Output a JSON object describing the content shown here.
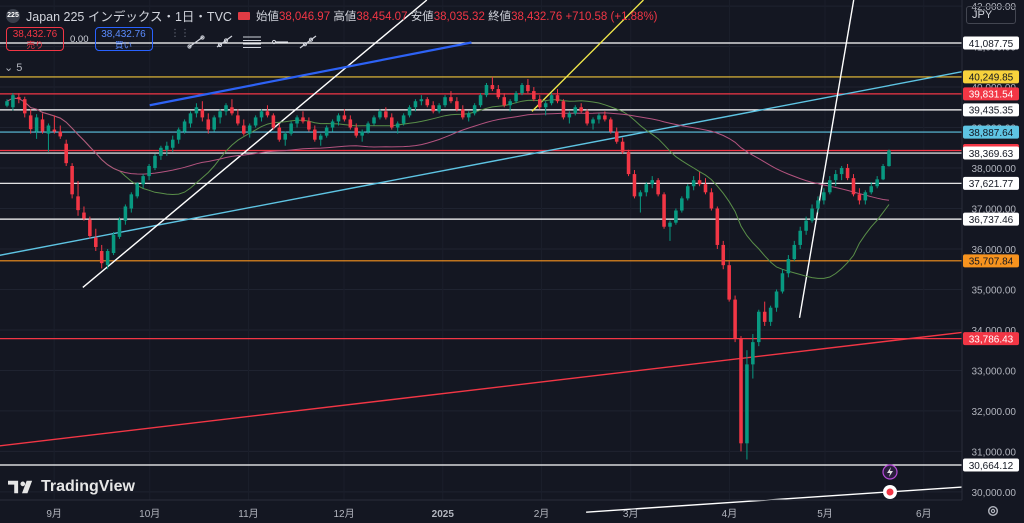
{
  "header": {
    "symbol_icon": "225",
    "title": "Japan 225 インデックス・1日・TVC",
    "ohlc": {
      "open_label": "始値",
      "open": "38,046.97",
      "high_label": "高値",
      "high": "38,454.07",
      "low_label": "安値",
      "low": "38,035.32",
      "close_label": "終値",
      "close": "38,432.76",
      "change": "+710.58 (+1.88%)"
    }
  },
  "trade": {
    "sell_price": "38,432.76",
    "sell_label": "売り",
    "spread": "0.00",
    "buy_price": "38,432.76",
    "buy_label": "買い"
  },
  "line_tool_count": "5",
  "currency": "JPY",
  "logo": "TradingView",
  "colors": {
    "background": "#141722",
    "up": "#089981",
    "down": "#f23645",
    "ma_short": "#5a8f49",
    "ma_long": "#b4537f"
  },
  "chart_data": {
    "type": "candlestick",
    "y_ticks": [
      "30,000.00",
      "31,000.00",
      "32,000.00",
      "33,000.00",
      "34,000.00",
      "35,000.00",
      "36,000.00",
      "37,000.00",
      "38,000.00",
      "39,000.00",
      "40,000.00",
      "41,000.00",
      "42,000.00"
    ],
    "ylim": [
      29800,
      42150
    ],
    "x_ticks": [
      "9月",
      "10月",
      "11月",
      "12月",
      "2025",
      "2月",
      "3月",
      "4月",
      "5月",
      "6月"
    ],
    "last_price": "38,432.76",
    "price_labels": [
      {
        "value": 41087.75,
        "text": "41,087.75",
        "color": "#ffffff",
        "bg": "#ffffff",
        "fg": "#131722"
      },
      {
        "value": 40249.85,
        "text": "40,249.85",
        "color": "#f0c43a",
        "bg": "#f7d23c",
        "fg": "#131722"
      },
      {
        "value": 39831.54,
        "text": "39,831.54",
        "color": "#f23645",
        "bg": "#f23645",
        "fg": "#ffffff"
      },
      {
        "value": 39435.35,
        "text": "39,435.35",
        "color": "#ffffff",
        "bg": "#ffffff",
        "fg": "#131722"
      },
      {
        "value": 38887.64,
        "text": "38,887.64",
        "color": "#5ec4e3",
        "bg": "#5ec4e3",
        "fg": "#131722"
      },
      {
        "value": 38432.76,
        "text": "38,432.76",
        "color": "#f23645",
        "bg": "#f23645",
        "fg": "#ffffff"
      },
      {
        "value": 38369.63,
        "text": "38,369.63",
        "color": "#ffffff",
        "bg": "#ffffff",
        "fg": "#131722"
      },
      {
        "value": 37621.77,
        "text": "37,621.77",
        "color": "#ffffff",
        "bg": "#ffffff",
        "fg": "#131722"
      },
      {
        "value": 36737.46,
        "text": "36,737.46",
        "color": "#ffffff",
        "bg": "#ffffff",
        "fg": "#131722"
      },
      {
        "value": 35707.84,
        "text": "35,707.84",
        "color": "#f7931e",
        "bg": "#f7931e",
        "fg": "#131722"
      },
      {
        "value": 33786.43,
        "text": "33,786.43",
        "color": "#f23645",
        "bg": "#f23645",
        "fg": "#ffffff"
      },
      {
        "value": 30664.12,
        "text": "30,664.12",
        "color": "#ffffff",
        "bg": "#ffffff",
        "fg": "#131722"
      }
    ],
    "trend_lines": [
      {
        "color": "#5ec4e3",
        "p1": [
          "2024-07-31",
          35620
        ],
        "p2": [
          "2025-06-13",
          40380
        ]
      },
      {
        "color": "#f23645",
        "p1": [
          "2024-07-31",
          31000
        ],
        "p2": [
          "2025-06-13",
          33940
        ]
      },
      {
        "color": "#ffffff",
        "p1": [
          "2025-02-15",
          29500
        ],
        "p2": [
          "2025-06-13",
          30120
        ]
      },
      {
        "color": "#ffffff",
        "p1": [
          "2024-09-10",
          35050
        ],
        "p2": [
          "2024-12-27",
          42150
        ]
      },
      {
        "color": "#2d62f5",
        "p1": [
          "2024-10-01",
          39550
        ],
        "p2": [
          "2025-01-10",
          41100
        ]
      },
      {
        "color": "#f0e64a",
        "p1": [
          "2025-01-29",
          39400
        ],
        "p2": [
          "2025-03-05",
          42150
        ]
      },
      {
        "color": "#ffffff",
        "p1": [
          "2025-04-23",
          34300
        ],
        "p2": [
          "2025-05-10",
          42150
        ]
      }
    ],
    "candles": [
      [
        39540,
        39700,
        39500,
        39650
      ],
      [
        39500,
        39850,
        39420,
        39800
      ],
      [
        39750,
        39850,
        39600,
        39700
      ],
      [
        39700,
        39760,
        39250,
        39350
      ],
      [
        39300,
        39450,
        38850,
        38960
      ],
      [
        38900,
        39330,
        38720,
        39250
      ],
      [
        39200,
        39350,
        38850,
        38900
      ],
      [
        38850,
        39100,
        38400,
        39050
      ],
      [
        38950,
        39300,
        38850,
        38900
      ],
      [
        38900,
        39050,
        38720,
        38780
      ],
      [
        38600,
        38700,
        38050,
        38120
      ],
      [
        38050,
        38120,
        37250,
        37350
      ],
      [
        37300,
        37680,
        36820,
        36960
      ],
      [
        36900,
        37050,
        36700,
        36750
      ],
      [
        36720,
        36800,
        36260,
        36320
      ],
      [
        36280,
        36500,
        35950,
        36050
      ],
      [
        35950,
        36100,
        35520,
        35650
      ],
      [
        35600,
        36000,
        35500,
        35950
      ],
      [
        35900,
        36420,
        35850,
        36350
      ],
      [
        36300,
        36780,
        36250,
        36720
      ],
      [
        36700,
        37100,
        36600,
        37050
      ],
      [
        37000,
        37400,
        36900,
        37350
      ],
      [
        37300,
        37650,
        37250,
        37620
      ],
      [
        37600,
        37850,
        37500,
        37800
      ],
      [
        37800,
        38100,
        37700,
        38050
      ],
      [
        38000,
        38350,
        37950,
        38300
      ],
      [
        38300,
        38550,
        38200,
        38500
      ],
      [
        38450,
        38650,
        38300,
        38550
      ],
      [
        38500,
        38800,
        38400,
        38700
      ],
      [
        38700,
        39000,
        38600,
        38950
      ],
      [
        38900,
        39200,
        38850,
        39150
      ],
      [
        39100,
        39400,
        39000,
        39350
      ],
      [
        39350,
        39600,
        39250,
        39500
      ],
      [
        39450,
        39650,
        39150,
        39250
      ],
      [
        39200,
        39350,
        38850,
        38950
      ],
      [
        38950,
        39300,
        38900,
        39250
      ],
      [
        39250,
        39450,
        39100,
        39400
      ],
      [
        39400,
        39600,
        39300,
        39550
      ],
      [
        39500,
        39700,
        39300,
        39350
      ],
      [
        39300,
        39450,
        39050,
        39100
      ],
      [
        39050,
        39200,
        38800,
        38850
      ],
      [
        38850,
        39100,
        38750,
        39050
      ],
      [
        39050,
        39300,
        39000,
        39250
      ],
      [
        39250,
        39450,
        39150,
        39400
      ],
      [
        39400,
        39550,
        39250,
        39300
      ],
      [
        39300,
        39350,
        38950,
        39000
      ],
      [
        39000,
        39100,
        38650,
        38700
      ],
      [
        38700,
        38900,
        38550,
        38850
      ],
      [
        38850,
        39150,
        38800,
        39100
      ],
      [
        39100,
        39300,
        39000,
        39250
      ],
      [
        39250,
        39400,
        39100,
        39150
      ],
      [
        39150,
        39250,
        38900,
        38950
      ],
      [
        38950,
        39050,
        38650,
        38700
      ],
      [
        38700,
        38850,
        38550,
        38800
      ],
      [
        38800,
        39050,
        38750,
        39000
      ],
      [
        39000,
        39200,
        38900,
        39150
      ],
      [
        39150,
        39350,
        39050,
        39300
      ],
      [
        39300,
        39450,
        39150,
        39200
      ],
      [
        39200,
        39300,
        38950,
        39000
      ],
      [
        39000,
        39100,
        38750,
        38800
      ],
      [
        38800,
        38950,
        38650,
        38900
      ],
      [
        38900,
        39150,
        38850,
        39100
      ],
      [
        39100,
        39300,
        39050,
        39250
      ],
      [
        39250,
        39450,
        39200,
        39400
      ],
      [
        39400,
        39500,
        39200,
        39250
      ],
      [
        39250,
        39350,
        38950,
        39000
      ],
      [
        39000,
        39150,
        38850,
        39100
      ],
      [
        39100,
        39350,
        39050,
        39300
      ],
      [
        39300,
        39550,
        39250,
        39500
      ],
      [
        39500,
        39700,
        39400,
        39650
      ],
      [
        39650,
        39800,
        39550,
        39700
      ],
      [
        39700,
        39750,
        39500,
        39550
      ],
      [
        39550,
        39650,
        39350,
        39400
      ],
      [
        39400,
        39600,
        39350,
        39550
      ],
      [
        39550,
        39800,
        39500,
        39750
      ],
      [
        39750,
        39900,
        39600,
        39650
      ],
      [
        39650,
        39750,
        39400,
        39450
      ],
      [
        39450,
        39550,
        39200,
        39250
      ],
      [
        39250,
        39400,
        39150,
        39350
      ],
      [
        39350,
        39600,
        39300,
        39550
      ],
      [
        39550,
        39850,
        39500,
        39800
      ],
      [
        39800,
        40100,
        39750,
        40050
      ],
      [
        40050,
        40250,
        39900,
        39950
      ],
      [
        39950,
        40050,
        39700,
        39750
      ],
      [
        39750,
        39850,
        39500,
        39550
      ],
      [
        39550,
        39700,
        39400,
        39650
      ],
      [
        39650,
        39900,
        39600,
        39850
      ],
      [
        39850,
        40100,
        39800,
        40050
      ],
      [
        40050,
        40200,
        39850,
        39900
      ],
      [
        39900,
        40000,
        39650,
        39700
      ],
      [
        39700,
        39800,
        39450,
        39500
      ],
      [
        39500,
        39650,
        39300,
        39600
      ],
      [
        39600,
        39850,
        39550,
        39800
      ],
      [
        39800,
        39950,
        39600,
        39650
      ],
      [
        39650,
        39700,
        39200,
        39250
      ],
      [
        39250,
        39400,
        39100,
        39350
      ],
      [
        39350,
        39550,
        39300,
        39500
      ],
      [
        39500,
        39600,
        39350,
        39400
      ],
      [
        39400,
        39450,
        39050,
        39100
      ],
      [
        39100,
        39250,
        38950,
        39200
      ],
      [
        39200,
        39350,
        39100,
        39300
      ],
      [
        39300,
        39400,
        39150,
        39200
      ],
      [
        39200,
        39250,
        38850,
        38900
      ],
      [
        38900,
        39000,
        38600,
        38650
      ],
      [
        38650,
        38750,
        38350,
        38400
      ],
      [
        38400,
        38450,
        37800,
        37850
      ],
      [
        37850,
        37950,
        37250,
        37300
      ],
      [
        37300,
        37450,
        36900,
        37400
      ],
      [
        37400,
        37650,
        37300,
        37600
      ],
      [
        37600,
        37800,
        37500,
        37700
      ],
      [
        37700,
        37750,
        37300,
        37350
      ],
      [
        37350,
        37400,
        36500,
        36550
      ],
      [
        36550,
        36700,
        36200,
        36650
      ],
      [
        36650,
        37000,
        36600,
        36950
      ],
      [
        36950,
        37300,
        36900,
        37250
      ],
      [
        37250,
        37600,
        37200,
        37550
      ],
      [
        37550,
        37800,
        37450,
        37700
      ],
      [
        37700,
        37900,
        37550,
        37600
      ],
      [
        37600,
        37750,
        37350,
        37400
      ],
      [
        37400,
        37500,
        36950,
        37000
      ],
      [
        37000,
        37050,
        36000,
        36100
      ],
      [
        36100,
        36200,
        35500,
        35600
      ],
      [
        35600,
        35700,
        34700,
        34750
      ],
      [
        34750,
        34850,
        33700,
        33800
      ],
      [
        33800,
        33850,
        31000,
        31200
      ],
      [
        31200,
        33500,
        30800,
        33150
      ],
      [
        33150,
        33900,
        32800,
        33700
      ],
      [
        33700,
        34500,
        33600,
        34450
      ],
      [
        34450,
        34700,
        34100,
        34200
      ],
      [
        34200,
        34600,
        34100,
        34550
      ],
      [
        34550,
        35000,
        34450,
        34950
      ],
      [
        34950,
        35500,
        34900,
        35400
      ],
      [
        35400,
        35850,
        35300,
        35750
      ],
      [
        35750,
        36200,
        35700,
        36100
      ],
      [
        36100,
        36550,
        36000,
        36450
      ],
      [
        36450,
        36800,
        36350,
        36700
      ],
      [
        36700,
        37100,
        36650,
        37000
      ],
      [
        37000,
        37300,
        36900,
        37200
      ],
      [
        37200,
        37500,
        37100,
        37400
      ],
      [
        37400,
        37800,
        37350,
        37700
      ],
      [
        37700,
        37950,
        37550,
        37850
      ],
      [
        37850,
        38050,
        37700,
        38000
      ],
      [
        38000,
        38100,
        37700,
        37750
      ],
      [
        37750,
        37850,
        37300,
        37350
      ],
      [
        37350,
        37500,
        37100,
        37200
      ],
      [
        37200,
        37450,
        37100,
        37400
      ],
      [
        37400,
        37650,
        37350,
        37550
      ],
      [
        37550,
        37800,
        37500,
        37720
      ],
      [
        37720,
        38100,
        37700,
        38050
      ],
      [
        38046.97,
        38454.07,
        38035.32,
        38432.76
      ]
    ]
  }
}
